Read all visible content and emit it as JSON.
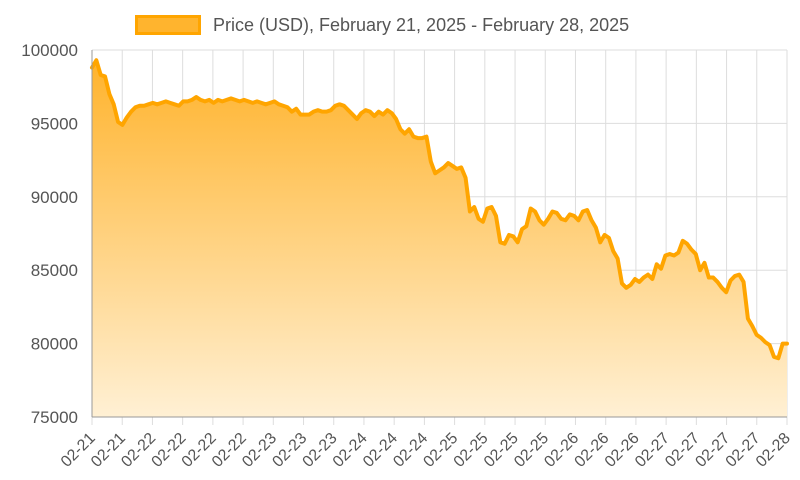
{
  "chart_data": {
    "type": "area",
    "series": [
      {
        "name": "Price (USD), February 21, 2025 - February 28, 2025",
        "color": "#ffa500",
        "values": [
          98800,
          99300,
          98300,
          98200,
          97000,
          96300,
          95100,
          94900,
          95400,
          95800,
          96100,
          96200,
          96200,
          96300,
          96400,
          96300,
          96400,
          96500,
          96400,
          96300,
          96200,
          96500,
          96500,
          96600,
          96800,
          96600,
          96500,
          96600,
          96400,
          96600,
          96500,
          96600,
          96700,
          96600,
          96500,
          96600,
          96500,
          96400,
          96500,
          96400,
          96300,
          96400,
          96500,
          96300,
          96200,
          96100,
          95800,
          96000,
          95600,
          95600,
          95600,
          95800,
          95900,
          95800,
          95800,
          95900,
          96200,
          96300,
          96200,
          95900,
          95600,
          95300,
          95700,
          95900,
          95800,
          95500,
          95800,
          95600,
          95900,
          95700,
          95300,
          94600,
          94300,
          94600,
          94100,
          94000,
          94000,
          94100,
          92400,
          91600,
          91800,
          92000,
          92300,
          92100,
          91900,
          92000,
          91300,
          89000,
          89300,
          88500,
          88300,
          89200,
          89300,
          88700,
          86900,
          86800,
          87400,
          87300,
          86900,
          87800,
          88000,
          89200,
          89000,
          88400,
          88100,
          88500,
          89000,
          88900,
          88500,
          88400,
          88800,
          88700,
          88400,
          89000,
          89100,
          88400,
          87900,
          86900,
          87400,
          87200,
          86300,
          85800,
          84100,
          83800,
          84000,
          84400,
          84200,
          84500,
          84700,
          84400,
          85400,
          85100,
          86000,
          86100,
          86000,
          86200,
          87000,
          86800,
          86400,
          86100,
          85000,
          85500,
          84500,
          84500,
          84200,
          83800,
          83500,
          84300,
          84600,
          84700,
          84200,
          81700,
          81200,
          80600,
          80400,
          80100,
          79900,
          79100,
          79000,
          80000,
          80000
        ]
      }
    ],
    "x_tick_labels": [
      "02-21",
      "02-21",
      "02-22",
      "02-22",
      "02-22",
      "02-22",
      "02-23",
      "02-23",
      "02-23",
      "02-24",
      "02-24",
      "02-24",
      "02-25",
      "02-25",
      "02-25",
      "02-25",
      "02-26",
      "02-26",
      "02-26",
      "02-27",
      "02-27",
      "02-27",
      "02-27",
      "02-28"
    ],
    "y_ticks": [
      75000,
      80000,
      85000,
      90000,
      95000,
      100000
    ],
    "ylim": [
      75000,
      100000
    ],
    "grid": true,
    "legend_position": "top-center",
    "fill_gradient": [
      "#ffb32c",
      "#fff0d4"
    ]
  }
}
